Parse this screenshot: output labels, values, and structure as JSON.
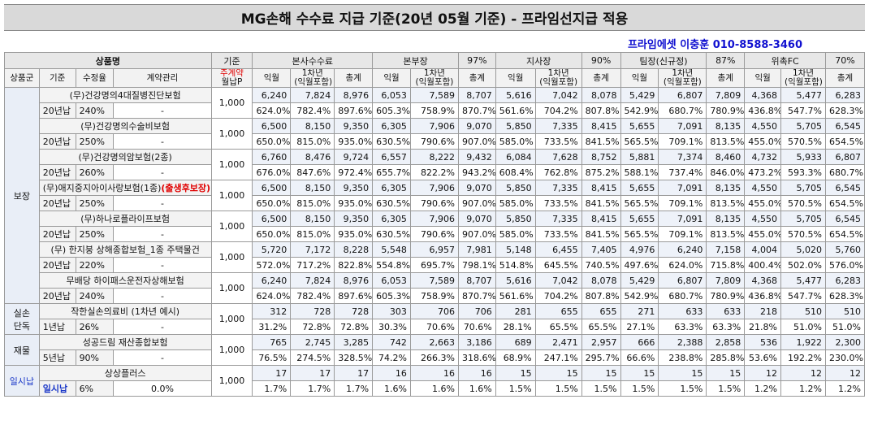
{
  "title": "MG손해 수수료 지급 기준(20년 05월 기준) - 프라임선지급 적용",
  "contact": "프라임에셋 이충훈 010-8588-3460",
  "header": {
    "product": "상품명",
    "base": "기준",
    "s1": "본사수수료",
    "s2": "본부장",
    "s2p": "97%",
    "s3": "지사장",
    "s3p": "90%",
    "s4": "팀장(신규정)",
    "s4p": "87%",
    "s5": "위촉FC",
    "s5p": "70%",
    "cat": "상품군",
    "period": "기준",
    "rate": "수정율",
    "mgmt": "계약관리",
    "basepay1": "주계약",
    "basepay2": "월납P",
    "c1": "익월",
    "c2a": "1차년",
    "c2b": "(익월포함)",
    "c3": "총계"
  },
  "groups": [
    {
      "name": "보장",
      "products": [
        {
          "name": "(무)건강명의4대질병진단보험",
          "period": "20년납",
          "rate": "240%",
          "mgmt": "-",
          "base": "1,000",
          "amounts": [
            "6,240",
            "7,824",
            "8,976",
            "6,053",
            "7,589",
            "8,707",
            "5,616",
            "7,042",
            "8,078",
            "5,429",
            "6,807",
            "7,809",
            "4,368",
            "5,477",
            "6,283"
          ],
          "pcts": [
            "624.0%",
            "782.4%",
            "897.6%",
            "605.3%",
            "758.9%",
            "870.7%",
            "561.6%",
            "704.2%",
            "807.8%",
            "542.9%",
            "680.7%",
            "780.9%",
            "436.8%",
            "547.7%",
            "628.3%"
          ]
        },
        {
          "name": "(무)건강명의수술비보험",
          "period": "20년납",
          "rate": "250%",
          "mgmt": "-",
          "base": "1,000",
          "amounts": [
            "6,500",
            "8,150",
            "9,350",
            "6,305",
            "7,906",
            "9,070",
            "5,850",
            "7,335",
            "8,415",
            "5,655",
            "7,091",
            "8,135",
            "4,550",
            "5,705",
            "6,545"
          ],
          "pcts": [
            "650.0%",
            "815.0%",
            "935.0%",
            "630.5%",
            "790.6%",
            "907.0%",
            "585.0%",
            "733.5%",
            "841.5%",
            "565.5%",
            "709.1%",
            "813.5%",
            "455.0%",
            "570.5%",
            "654.5%"
          ]
        },
        {
          "name": "(무)건강명의암보험(2종)",
          "period": "20년납",
          "rate": "260%",
          "mgmt": "-",
          "base": "1,000",
          "amounts": [
            "6,760",
            "8,476",
            "9,724",
            "6,557",
            "8,222",
            "9,432",
            "6,084",
            "7,628",
            "8,752",
            "5,881",
            "7,374",
            "8,460",
            "4,732",
            "5,933",
            "6,807"
          ],
          "pcts": [
            "676.0%",
            "847.6%",
            "972.4%",
            "655.7%",
            "822.2%",
            "943.2%",
            "608.4%",
            "762.8%",
            "875.2%",
            "588.1%",
            "737.4%",
            "846.0%",
            "473.2%",
            "593.3%",
            "680.7%"
          ]
        },
        {
          "name": "(무)애지중지아이사랑보험(1종)",
          "name_suffix": "(출생후보장)",
          "period": "20년납",
          "rate": "250%",
          "mgmt": "-",
          "base": "1,000",
          "amounts": [
            "6,500",
            "8,150",
            "9,350",
            "6,305",
            "7,906",
            "9,070",
            "5,850",
            "7,335",
            "8,415",
            "5,655",
            "7,091",
            "8,135",
            "4,550",
            "5,705",
            "6,545"
          ],
          "pcts": [
            "650.0%",
            "815.0%",
            "935.0%",
            "630.5%",
            "790.6%",
            "907.0%",
            "585.0%",
            "733.5%",
            "841.5%",
            "565.5%",
            "709.1%",
            "813.5%",
            "455.0%",
            "570.5%",
            "654.5%"
          ]
        },
        {
          "name": "(무)하나로플라이프보험",
          "period": "20년납",
          "rate": "250%",
          "mgmt": "-",
          "base": "1,000",
          "amounts": [
            "6,500",
            "8,150",
            "9,350",
            "6,305",
            "7,906",
            "9,070",
            "5,850",
            "7,335",
            "8,415",
            "5,655",
            "7,091",
            "8,135",
            "4,550",
            "5,705",
            "6,545"
          ],
          "pcts": [
            "650.0%",
            "815.0%",
            "935.0%",
            "630.5%",
            "790.6%",
            "907.0%",
            "585.0%",
            "733.5%",
            "841.5%",
            "565.5%",
            "709.1%",
            "813.5%",
            "455.0%",
            "570.5%",
            "654.5%"
          ]
        },
        {
          "name": "(무) 한지붕 상해종합보험_1종 주택물건",
          "period": "20년납",
          "rate": "220%",
          "mgmt": "-",
          "base": "1,000",
          "amounts": [
            "5,720",
            "7,172",
            "8,228",
            "5,548",
            "6,957",
            "7,981",
            "5,148",
            "6,455",
            "7,405",
            "4,976",
            "6,240",
            "7,158",
            "4,004",
            "5,020",
            "5,760"
          ],
          "pcts": [
            "572.0%",
            "717.2%",
            "822.8%",
            "554.8%",
            "695.7%",
            "798.1%",
            "514.8%",
            "645.5%",
            "740.5%",
            "497.6%",
            "624.0%",
            "715.8%",
            "400.4%",
            "502.0%",
            "576.0%"
          ]
        },
        {
          "name": "무배당 하이패스운전자상해보험",
          "period": "20년납",
          "rate": "240%",
          "mgmt": "-",
          "base": "1,000",
          "amounts": [
            "6,240",
            "7,824",
            "8,976",
            "6,053",
            "7,589",
            "8,707",
            "5,616",
            "7,042",
            "8,078",
            "5,429",
            "6,807",
            "7,809",
            "4,368",
            "5,477",
            "6,283"
          ],
          "pcts": [
            "624.0%",
            "782.4%",
            "897.6%",
            "605.3%",
            "758.9%",
            "870.7%",
            "561.6%",
            "704.2%",
            "807.8%",
            "542.9%",
            "680.7%",
            "780.9%",
            "436.8%",
            "547.7%",
            "628.3%"
          ]
        }
      ]
    },
    {
      "name": "실손\n단독",
      "products": [
        {
          "name": "작한실손의료비 (1차년 예시)",
          "period": "1년납",
          "rate": "26%",
          "mgmt": "-",
          "base": "1,000",
          "amounts": [
            "312",
            "728",
            "728",
            "303",
            "706",
            "706",
            "281",
            "655",
            "655",
            "271",
            "633",
            "633",
            "218",
            "510",
            "510"
          ],
          "pcts": [
            "31.2%",
            "72.8%",
            "72.8%",
            "30.3%",
            "70.6%",
            "70.6%",
            "28.1%",
            "65.5%",
            "65.5%",
            "27.1%",
            "63.3%",
            "63.3%",
            "21.8%",
            "51.0%",
            "51.0%"
          ]
        }
      ]
    },
    {
      "name": "재물",
      "products": [
        {
          "name": "성공드림 재산종합보험",
          "period": "5년납",
          "rate": "90%",
          "mgmt": "-",
          "base": "1,000",
          "amounts": [
            "765",
            "2,745",
            "3,285",
            "742",
            "2,663",
            "3,186",
            "689",
            "2,471",
            "2,957",
            "666",
            "2,388",
            "2,858",
            "536",
            "1,922",
            "2,300"
          ],
          "pcts": [
            "76.5%",
            "274.5%",
            "328.5%",
            "74.2%",
            "266.3%",
            "318.6%",
            "68.9%",
            "247.1%",
            "295.7%",
            "66.6%",
            "238.8%",
            "285.8%",
            "53.6%",
            "192.2%",
            "230.0%"
          ]
        }
      ]
    },
    {
      "name": "일시납",
      "blue": true,
      "products": [
        {
          "name": "상상플러스",
          "period": "일시납",
          "period_blue": true,
          "rate": "6%",
          "mgmt": "0.0%",
          "base": "1,000",
          "amounts": [
            "17",
            "17",
            "17",
            "16",
            "16",
            "16",
            "15",
            "15",
            "15",
            "15",
            "15",
            "15",
            "12",
            "12",
            "12"
          ],
          "pcts": [
            "1.7%",
            "1.7%",
            "1.7%",
            "1.6%",
            "1.6%",
            "1.6%",
            "1.5%",
            "1.5%",
            "1.5%",
            "1.5%",
            "1.5%",
            "1.5%",
            "1.2%",
            "1.2%",
            "1.2%"
          ]
        }
      ]
    }
  ]
}
